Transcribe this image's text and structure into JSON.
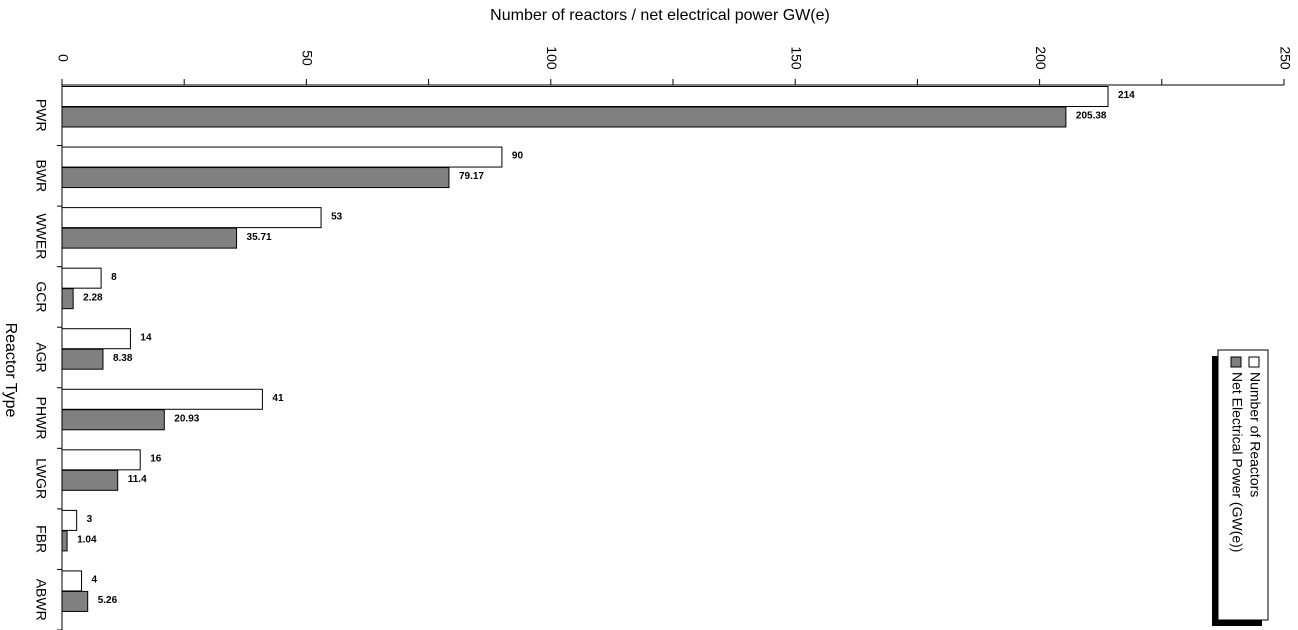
{
  "chart_data": {
    "type": "bar",
    "orientation": "horizontal",
    "xlabel": "Number of  reactors / net electrical power GW(e)",
    "ylabel": "Reactor Type",
    "categories": [
      "PWR",
      "BWR",
      "WWER",
      "GCR",
      "AGR",
      "PHWR",
      "LWGR",
      "FBR",
      "ABWR"
    ],
    "series": [
      {
        "name": "Number of Reactors",
        "color": "#ffffff",
        "values": [
          214,
          90,
          53,
          8,
          14,
          41,
          16,
          3,
          4
        ]
      },
      {
        "name": "Net Electrical Power (GW(e))",
        "color": "#808080",
        "values": [
          205.38,
          79.17,
          35.71,
          2.28,
          8.38,
          20.93,
          11.4,
          1.04,
          5.26
        ]
      }
    ],
    "xlim": [
      0,
      250
    ],
    "xticks": [
      0,
      50,
      100,
      150,
      200,
      250
    ],
    "minor_xticks": [
      25,
      75,
      125,
      175,
      225
    ],
    "legend": "bottom-right"
  }
}
